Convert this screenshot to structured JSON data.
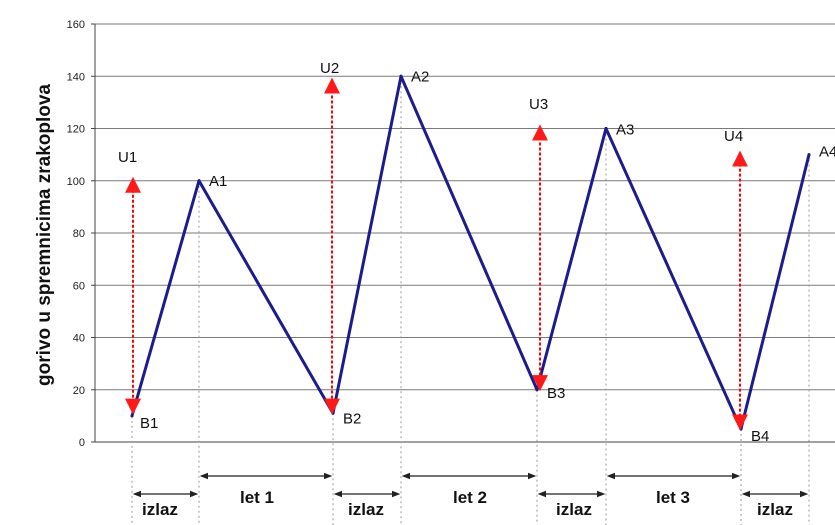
{
  "chart_data": {
    "type": "line",
    "title": "",
    "xlabel": "",
    "ylabel": "gorivo u spremnicima zrakoplova",
    "ylim": [
      0,
      160
    ],
    "yticks": [
      0,
      20,
      40,
      60,
      80,
      100,
      120,
      140,
      160
    ],
    "grid": true,
    "series": [
      {
        "points": [
          {
            "label": "B1",
            "y": 10
          },
          {
            "label": "A1",
            "y": 100
          },
          {
            "label": "B2",
            "y": 11
          },
          {
            "label": "A2",
            "y": 140
          },
          {
            "label": "B3",
            "y": 20
          },
          {
            "label": "A3",
            "y": 120
          },
          {
            "label": "B4",
            "y": 5
          },
          {
            "label": "A4",
            "y": 110
          }
        ],
        "color": "#1c1c8c"
      }
    ],
    "refuel_arrows": [
      {
        "label": "U1",
        "from": 100,
        "to": 12
      },
      {
        "label": "U2",
        "from": 138,
        "to": 12
      },
      {
        "label": "U3",
        "from": 120,
        "to": 21
      },
      {
        "label": "U4",
        "from": 110,
        "to": 6
      }
    ],
    "arrow_color": "#ff0000",
    "segments": [
      "izlaz",
      "let 1",
      "izlaz",
      "let 2",
      "izlaz",
      "let 3",
      "izlaz"
    ]
  }
}
